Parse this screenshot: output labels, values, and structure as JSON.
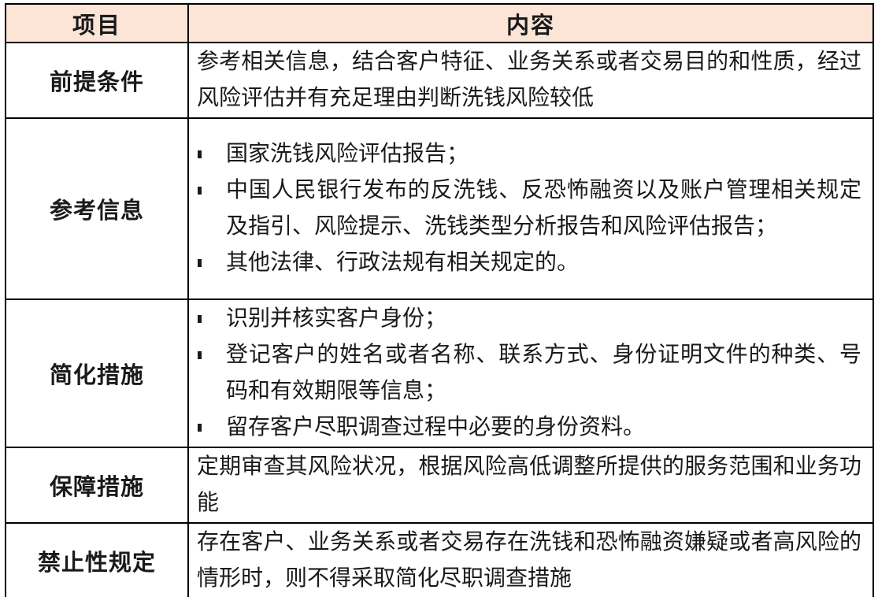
{
  "colors": {
    "header_bg": "#fce4d6",
    "border": "#000000",
    "text": "#1a1a1a"
  },
  "table": {
    "columns": {
      "item": "项目",
      "content": "内容"
    },
    "rows": [
      {
        "item": "前提条件",
        "type": "paragraph",
        "text": "参考相关信息，结合客户特征、业务关系或者交易目的和性质，经过风险评估并有充足理由判断洗钱风险较低"
      },
      {
        "item": "参考信息",
        "type": "bullets",
        "bullets": [
          "国家洗钱风险评估报告；",
          "中国人民银行发布的反洗钱、反恐怖融资以及账户管理相关规定及指引、风险提示、洗钱类型分析报告和风险评估报告；",
          "其他法律、行政法规有相关规定的。"
        ]
      },
      {
        "item": "简化措施",
        "type": "bullets",
        "bullets": [
          "识别并核实客户身份；",
          "登记客户的姓名或者名称、联系方式、身份证明文件的种类、号码和有效期限等信息；",
          "留存客户尽职调查过程中必要的身份资料。"
        ]
      },
      {
        "item": "保障措施",
        "type": "paragraph",
        "text": "定期审查其风险状况，根据风险高低调整所提供的服务范围和业务功能"
      },
      {
        "item": "禁止性规定",
        "type": "paragraph",
        "text": "存在客户、业务关系或者交易存在洗钱和恐怖融资嫌疑或者高风险的情形时，则不得采取简化尽职调查措施"
      }
    ]
  }
}
